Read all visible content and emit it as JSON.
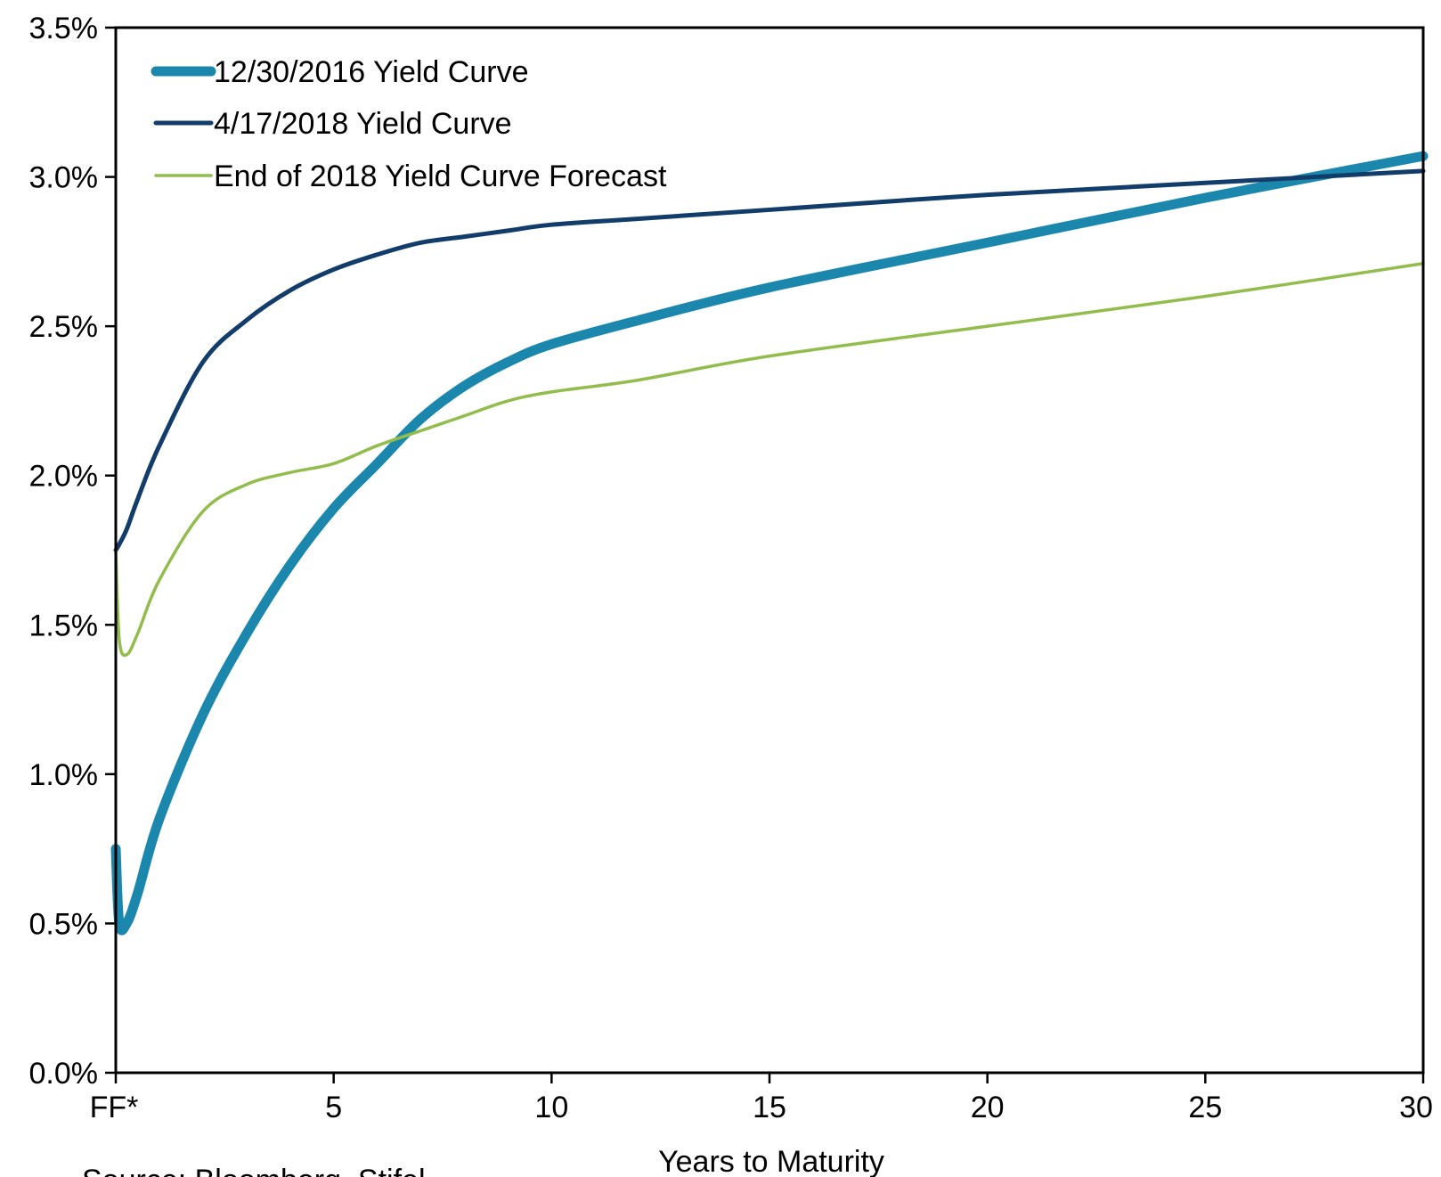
{
  "chart_data": {
    "type": "line",
    "title": "",
    "xlabel": "Years to Maturity",
    "ylabel": "",
    "xlim": [
      0,
      30
    ],
    "ylim": [
      0,
      3.5
    ],
    "x_ticks": [
      {
        "value": 0,
        "label": "FF*"
      },
      {
        "value": 5,
        "label": "5"
      },
      {
        "value": 10,
        "label": "10"
      },
      {
        "value": 15,
        "label": "15"
      },
      {
        "value": 20,
        "label": "20"
      },
      {
        "value": 25,
        "label": "25"
      },
      {
        "value": 30,
        "label": "30"
      }
    ],
    "y_ticks": [
      {
        "value": 0.0,
        "label": "0.0%"
      },
      {
        "value": 0.5,
        "label": "0.5%"
      },
      {
        "value": 1.0,
        "label": "1.0%"
      },
      {
        "value": 1.5,
        "label": "1.5%"
      },
      {
        "value": 2.0,
        "label": "2.0%"
      },
      {
        "value": 2.5,
        "label": "2.5%"
      },
      {
        "value": 3.0,
        "label": "3.0%"
      },
      {
        "value": 3.5,
        "label": "3.5%"
      }
    ],
    "grid": false,
    "legend": "top-left",
    "series": [
      {
        "name": "12/30/2016 Yield Curve",
        "color": "#1b87ad",
        "x": [
          0,
          0.08,
          0.25,
          0.5,
          1,
          2,
          3,
          4,
          5,
          6,
          7,
          8,
          9,
          10,
          12,
          15,
          20,
          25,
          30
        ],
        "y": [
          0.75,
          0.5,
          0.5,
          0.6,
          0.85,
          1.2,
          1.47,
          1.7,
          1.89,
          2.04,
          2.19,
          2.3,
          2.38,
          2.44,
          2.52,
          2.63,
          2.78,
          2.93,
          3.07
        ]
      },
      {
        "name": "4/17/2018 Yield Curve",
        "color": "#123d6b",
        "x": [
          0,
          0.08,
          0.25,
          0.5,
          1,
          2,
          3,
          4,
          5,
          6,
          7,
          8,
          9,
          10,
          12,
          15,
          20,
          25,
          30
        ],
        "y": [
          1.75,
          1.77,
          1.82,
          1.92,
          2.1,
          2.38,
          2.52,
          2.62,
          2.69,
          2.74,
          2.78,
          2.8,
          2.82,
          2.84,
          2.86,
          2.89,
          2.94,
          2.98,
          3.02
        ]
      },
      {
        "name": "End of 2018 Yield Curve Forecast",
        "color": "#92bd4c",
        "x": [
          0,
          0.08,
          0.25,
          0.5,
          1,
          2,
          3,
          4,
          5,
          6,
          7,
          8,
          9,
          10,
          12,
          15,
          20,
          25,
          30
        ],
        "y": [
          1.75,
          1.45,
          1.4,
          1.47,
          1.65,
          1.88,
          1.97,
          2.01,
          2.04,
          2.1,
          2.15,
          2.2,
          2.25,
          2.28,
          2.32,
          2.4,
          2.5,
          2.6,
          2.71
        ]
      }
    ],
    "source": "Source: Bloomberg, Stifel"
  }
}
